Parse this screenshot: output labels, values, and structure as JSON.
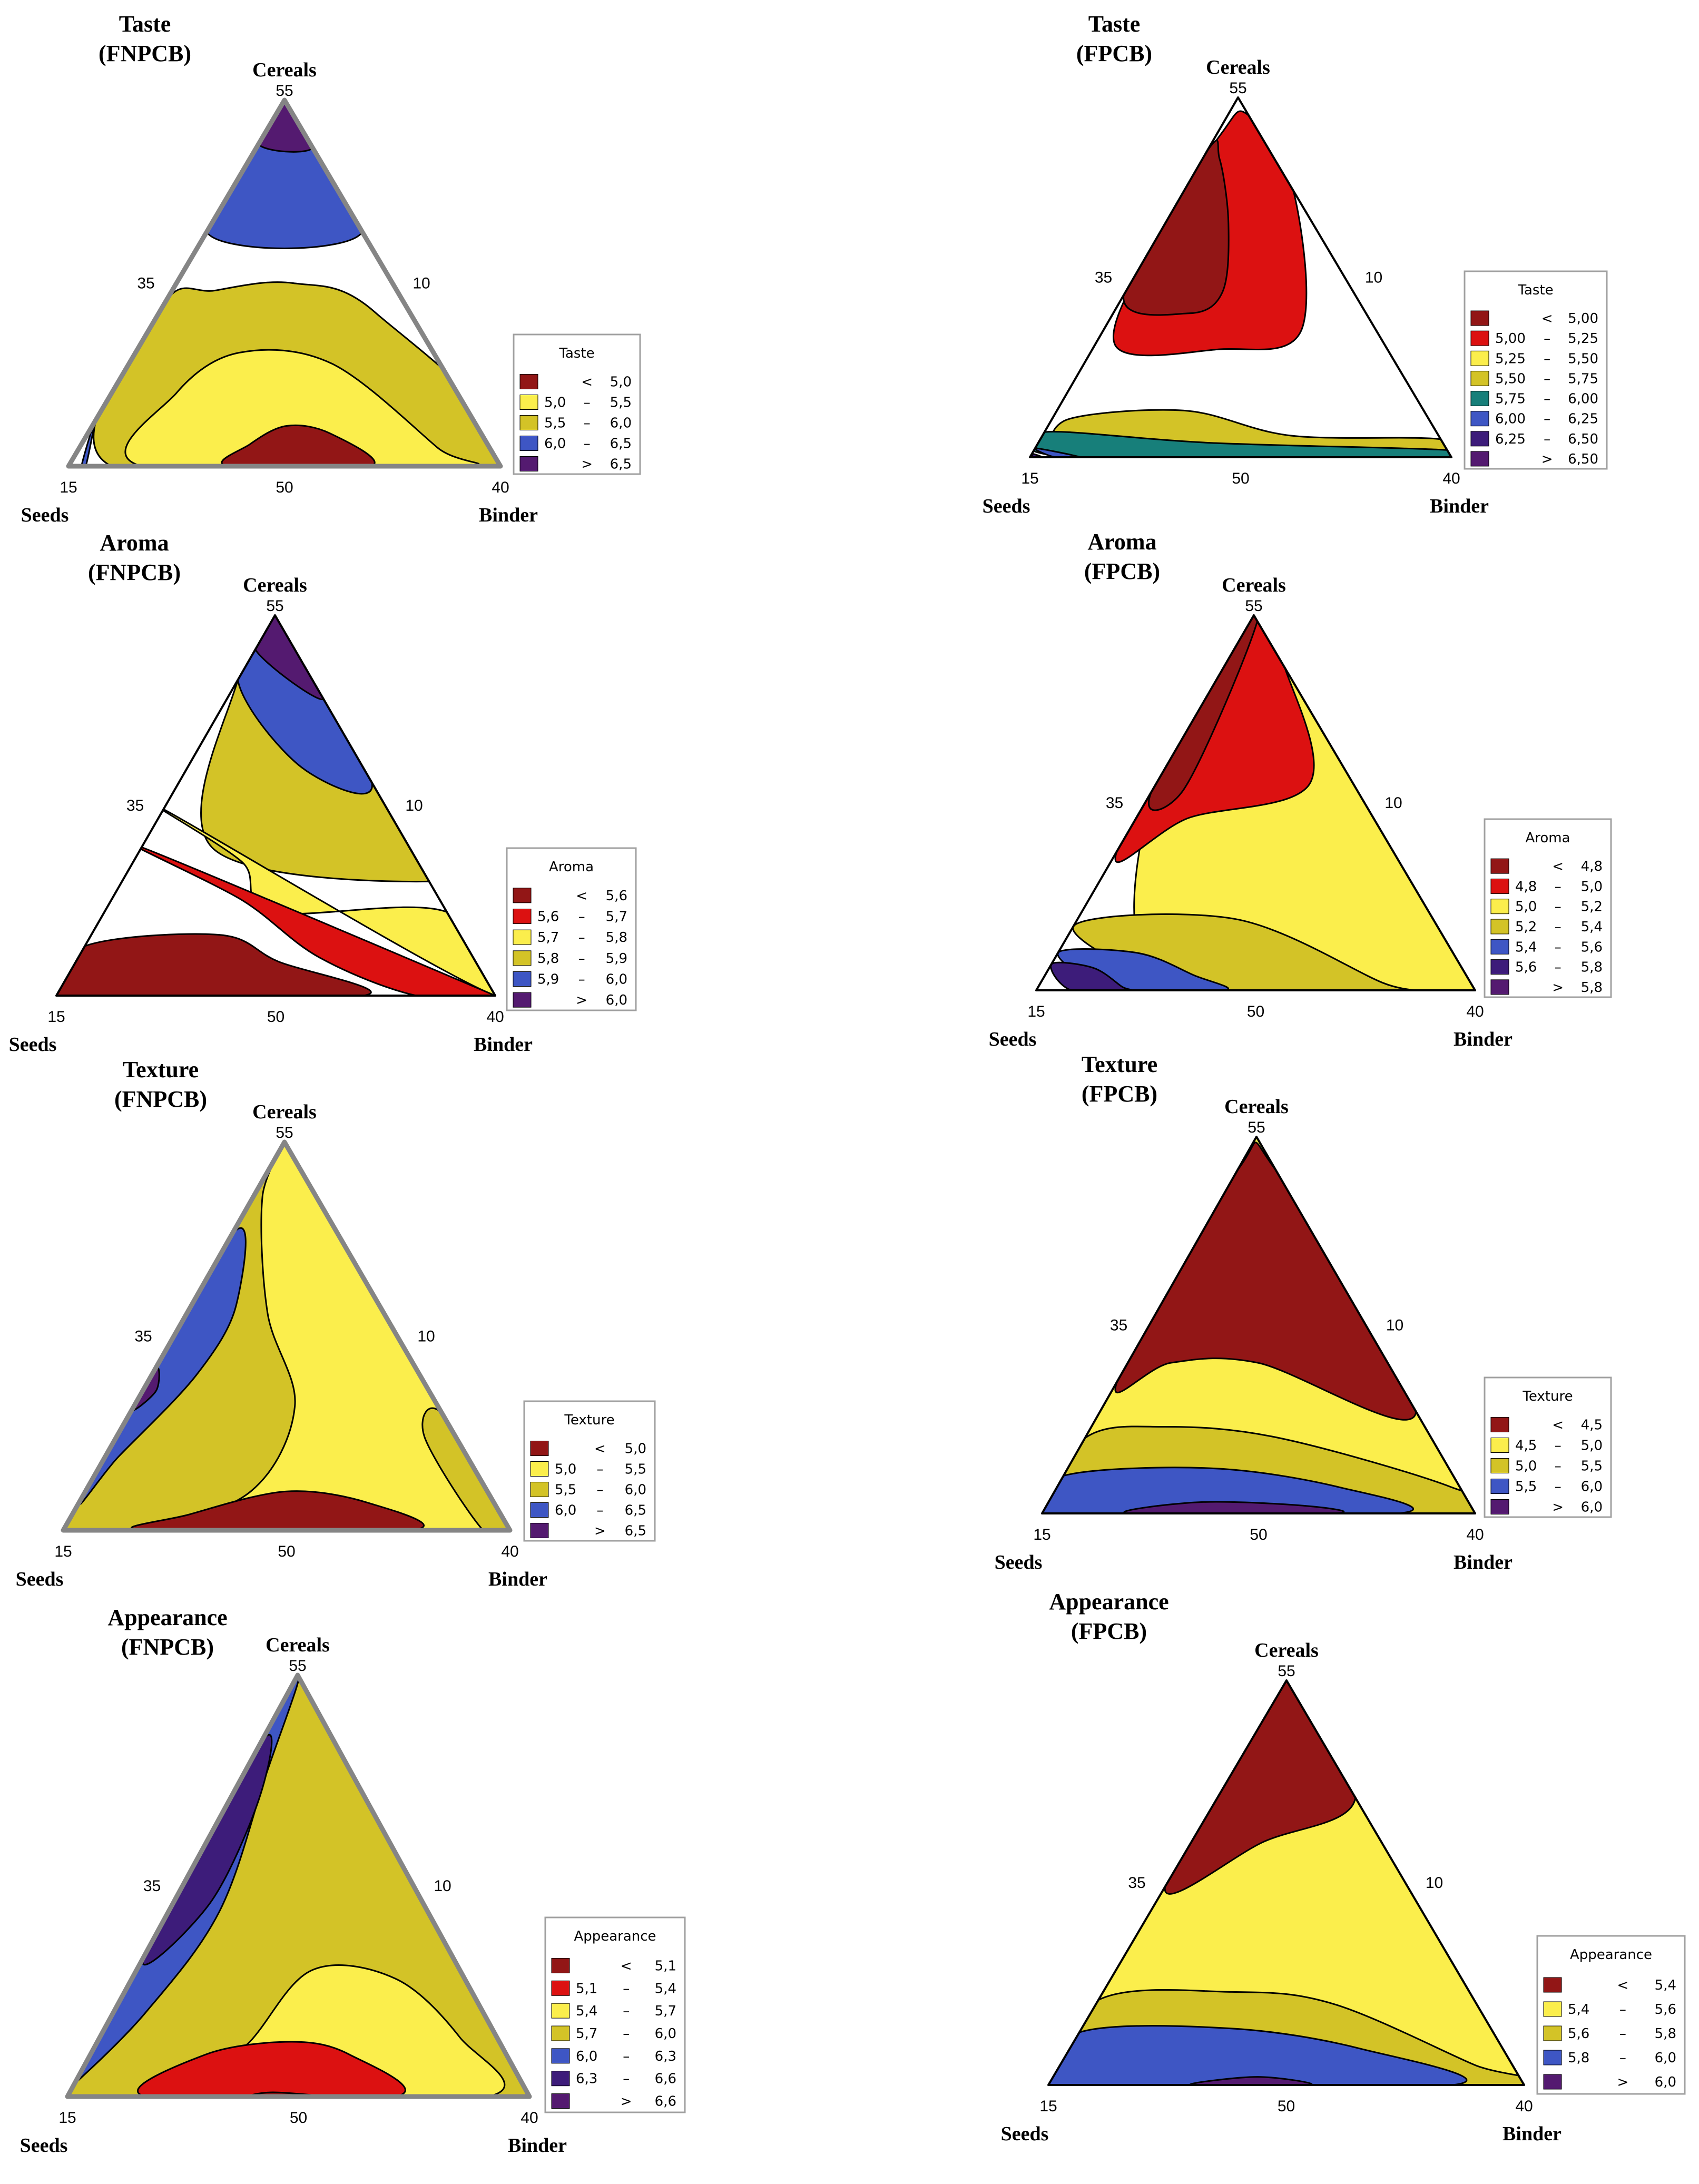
{
  "chart_data": [
    {
      "type": "ternary-contour",
      "title": "Taste",
      "subtitle": "(FNPCB)",
      "axes": {
        "top": "Cereals",
        "left": "Seeds",
        "right": "Binder"
      },
      "ticks": {
        "top": "55",
        "left_side": "35",
        "right_side": "10",
        "bottom_left": "15",
        "bottom_mid": "50",
        "bottom_right": "40"
      },
      "legend": {
        "title": "Taste",
        "items": [
          {
            "op": "<",
            "lo": "",
            "hi": "5,0",
            "color": "#921616"
          },
          {
            "op": "–",
            "lo": "5,0",
            "hi": "5,5",
            "color": "#fbee4c"
          },
          {
            "op": "–",
            "lo": "5,5",
            "hi": "6,0",
            "color": "#d3c327"
          },
          {
            "op": "–",
            "lo": "6,0",
            "hi": "6,5",
            "color": "#3e56c4"
          },
          {
            "op": ">",
            "lo": "",
            "hi": "6,5",
            "color": "#541a70"
          }
        ]
      }
    },
    {
      "type": "ternary-contour",
      "title": "Taste",
      "subtitle": "(FPCB)",
      "axes": {
        "top": "Cereals",
        "left": "Seeds",
        "right": "Binder"
      },
      "ticks": {
        "top": "55",
        "left_side": "35",
        "right_side": "10",
        "bottom_left": "15",
        "bottom_mid": "50",
        "bottom_right": "40"
      },
      "legend": {
        "title": "Taste",
        "items": [
          {
            "op": "<",
            "lo": "",
            "hi": "5,00",
            "color": "#921616"
          },
          {
            "op": "–",
            "lo": "5,00",
            "hi": "5,25",
            "color": "#dc1111"
          },
          {
            "op": "–",
            "lo": "5,25",
            "hi": "5,50",
            "color": "#fbee4c"
          },
          {
            "op": "–",
            "lo": "5,50",
            "hi": "5,75",
            "color": "#d3c327"
          },
          {
            "op": "–",
            "lo": "5,75",
            "hi": "6,00",
            "color": "#177f7a"
          },
          {
            "op": "–",
            "lo": "6,00",
            "hi": "6,25",
            "color": "#3e56c4"
          },
          {
            "op": "–",
            "lo": "6,25",
            "hi": "6,50",
            "color": "#3d1c7a"
          },
          {
            "op": ">",
            "lo": "",
            "hi": "6,50",
            "color": "#541a70"
          }
        ]
      }
    },
    {
      "type": "ternary-contour",
      "title": "Aroma",
      "subtitle": "(FNPCB)",
      "axes": {
        "top": "Cereals",
        "left": "Seeds",
        "right": "Binder"
      },
      "ticks": {
        "top": "55",
        "left_side": "35",
        "right_side": "10",
        "bottom_left": "15",
        "bottom_mid": "50",
        "bottom_right": "40"
      },
      "legend": {
        "title": "Aroma",
        "items": [
          {
            "op": "<",
            "lo": "",
            "hi": "5,6",
            "color": "#921616"
          },
          {
            "op": "–",
            "lo": "5,6",
            "hi": "5,7",
            "color": "#dc1111"
          },
          {
            "op": "–",
            "lo": "5,7",
            "hi": "5,8",
            "color": "#fbee4c"
          },
          {
            "op": "–",
            "lo": "5,8",
            "hi": "5,9",
            "color": "#d3c327"
          },
          {
            "op": "–",
            "lo": "5,9",
            "hi": "6,0",
            "color": "#3e56c4"
          },
          {
            "op": ">",
            "lo": "",
            "hi": "6,0",
            "color": "#541a70"
          }
        ]
      }
    },
    {
      "type": "ternary-contour",
      "title": "Aroma",
      "subtitle": "(FPCB)",
      "axes": {
        "top": "Cereals",
        "left": "Seeds",
        "right": "Binder"
      },
      "ticks": {
        "top": "55",
        "left_side": "35",
        "right_side": "10",
        "bottom_left": "15",
        "bottom_mid": "50",
        "bottom_right": "40"
      },
      "legend": {
        "title": "Aroma",
        "items": [
          {
            "op": "<",
            "lo": "",
            "hi": "4,8",
            "color": "#921616"
          },
          {
            "op": "–",
            "lo": "4,8",
            "hi": "5,0",
            "color": "#dc1111"
          },
          {
            "op": "–",
            "lo": "5,0",
            "hi": "5,2",
            "color": "#fbee4c"
          },
          {
            "op": "–",
            "lo": "5,2",
            "hi": "5,4",
            "color": "#d3c327"
          },
          {
            "op": "–",
            "lo": "5,4",
            "hi": "5,6",
            "color": "#3e56c4"
          },
          {
            "op": "–",
            "lo": "5,6",
            "hi": "5,8",
            "color": "#3d1c7a"
          },
          {
            "op": ">",
            "lo": "",
            "hi": "5,8",
            "color": "#541a70"
          }
        ]
      }
    },
    {
      "type": "ternary-contour",
      "title": "Texture",
      "subtitle": "(FNPCB)",
      "axes": {
        "top": "Cereals",
        "left": "Seeds",
        "right": "Binder"
      },
      "ticks": {
        "top": "55",
        "left_side": "35",
        "right_side": "10",
        "bottom_left": "15",
        "bottom_mid": "50",
        "bottom_right": "40"
      },
      "legend": {
        "title": "Texture",
        "items": [
          {
            "op": "<",
            "lo": "",
            "hi": "5,0",
            "color": "#921616"
          },
          {
            "op": "–",
            "lo": "5,0",
            "hi": "5,5",
            "color": "#fbee4c"
          },
          {
            "op": "–",
            "lo": "5,5",
            "hi": "6,0",
            "color": "#d3c327"
          },
          {
            "op": "–",
            "lo": "6,0",
            "hi": "6,5",
            "color": "#3e56c4"
          },
          {
            "op": ">",
            "lo": "",
            "hi": "6,5",
            "color": "#541a70"
          }
        ]
      }
    },
    {
      "type": "ternary-contour",
      "title": "Texture",
      "subtitle": "(FPCB)",
      "axes": {
        "top": "Cereals",
        "left": "Seeds",
        "right": "Binder"
      },
      "ticks": {
        "top": "55",
        "left_side": "35",
        "right_side": "10",
        "bottom_left": "15",
        "bottom_mid": "50",
        "bottom_right": "40"
      },
      "legend": {
        "title": "Texture",
        "items": [
          {
            "op": "<",
            "lo": "",
            "hi": "4,5",
            "color": "#921616"
          },
          {
            "op": "–",
            "lo": "4,5",
            "hi": "5,0",
            "color": "#fbee4c"
          },
          {
            "op": "–",
            "lo": "5,0",
            "hi": "5,5",
            "color": "#d3c327"
          },
          {
            "op": "–",
            "lo": "5,5",
            "hi": "6,0",
            "color": "#3e56c4"
          },
          {
            "op": ">",
            "lo": "",
            "hi": "6,0",
            "color": "#541a70"
          }
        ]
      }
    },
    {
      "type": "ternary-contour",
      "title": "Appearance",
      "subtitle": "(FNPCB)",
      "axes": {
        "top": "Cereals",
        "left": "Seeds",
        "right": "Binder"
      },
      "ticks": {
        "top": "55",
        "left_side": "35",
        "right_side": "10",
        "bottom_left": "15",
        "bottom_mid": "50",
        "bottom_right": "40"
      },
      "legend": {
        "title": "Appearance",
        "items": [
          {
            "op": "<",
            "lo": "",
            "hi": "5,1",
            "color": "#921616"
          },
          {
            "op": "–",
            "lo": "5,1",
            "hi": "5,4",
            "color": "#dc1111"
          },
          {
            "op": "–",
            "lo": "5,4",
            "hi": "5,7",
            "color": "#fbee4c"
          },
          {
            "op": "–",
            "lo": "5,7",
            "hi": "6,0",
            "color": "#d3c327"
          },
          {
            "op": "–",
            "lo": "6,0",
            "hi": "6,3",
            "color": "#3e56c4"
          },
          {
            "op": "–",
            "lo": "6,3",
            "hi": "6,6",
            "color": "#3d1c7a"
          },
          {
            "op": ">",
            "lo": "",
            "hi": "6,6",
            "color": "#541a70"
          }
        ]
      }
    },
    {
      "type": "ternary-contour",
      "title": "Appearance",
      "subtitle": "(FPCB)",
      "axes": {
        "top": "Cereals",
        "left": "Seeds",
        "right": "Binder"
      },
      "ticks": {
        "top": "55",
        "left_side": "35",
        "right_side": "10",
        "bottom_left": "15",
        "bottom_mid": "50",
        "bottom_right": "40"
      },
      "legend": {
        "title": "Appearance",
        "items": [
          {
            "op": "<",
            "lo": "",
            "hi": "5,4",
            "color": "#921616"
          },
          {
            "op": "–",
            "lo": "5,4",
            "hi": "5,6",
            "color": "#fbee4c"
          },
          {
            "op": "–",
            "lo": "5,6",
            "hi": "5,8",
            "color": "#d3c327"
          },
          {
            "op": "–",
            "lo": "5,8",
            "hi": "6,0",
            "color": "#3e56c4"
          },
          {
            "op": ">",
            "lo": "",
            "hi": "6,0",
            "color": "#541a70"
          }
        ]
      }
    }
  ]
}
